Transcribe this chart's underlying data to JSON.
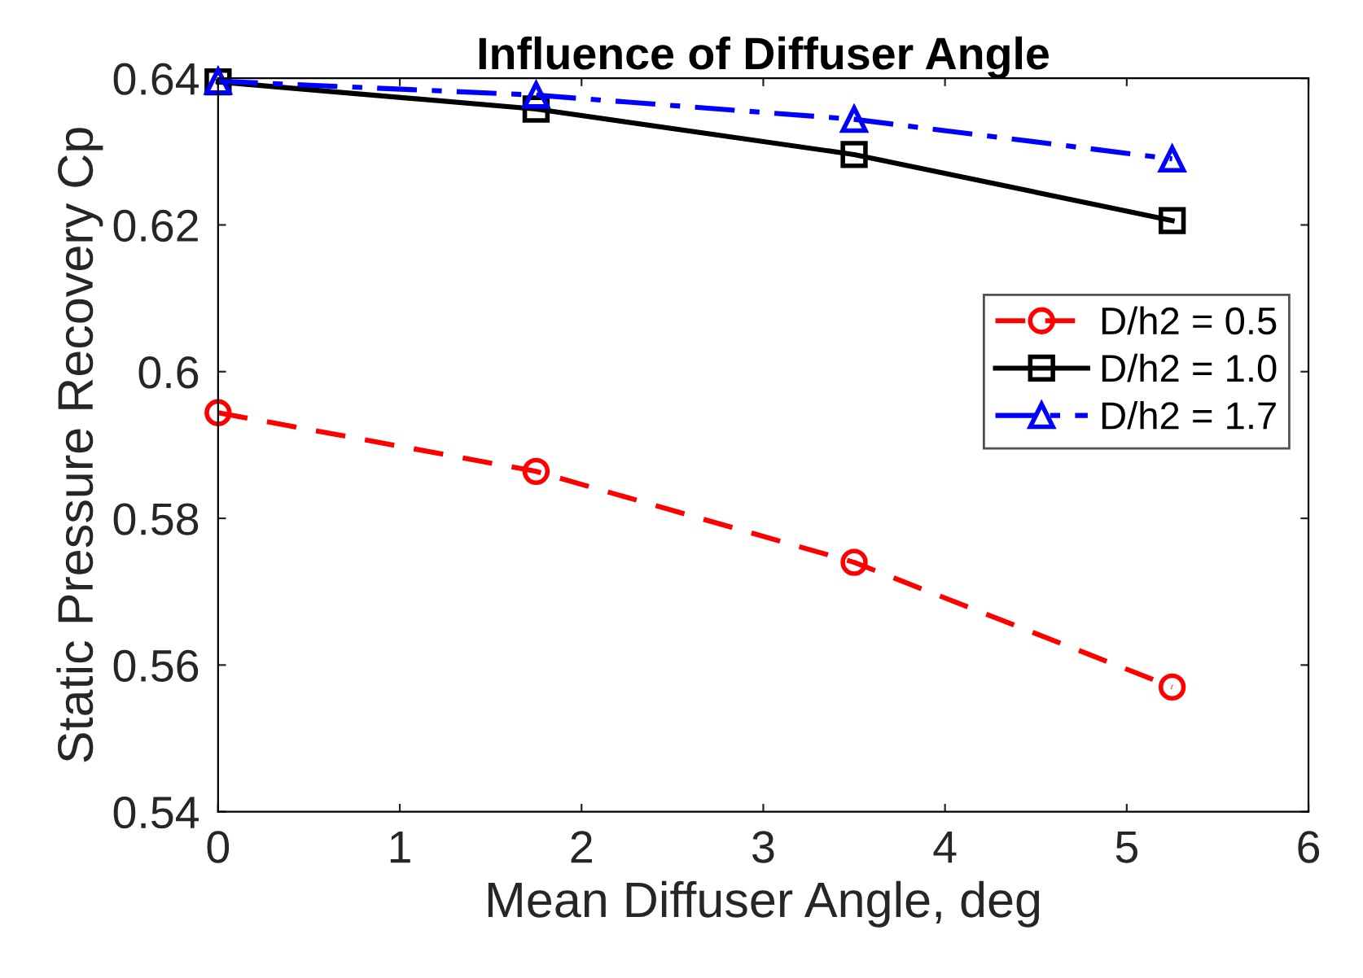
{
  "chart_data": {
    "type": "line",
    "title": "Influence of Diffuser Angle",
    "xlabel": "Mean Diffuser Angle, deg",
    "ylabel": "Static Pressure Recovery Cp",
    "x": [
      0,
      1.75,
      3.5,
      5.25
    ],
    "series": [
      {
        "name": "D/h2 = 0.5",
        "color": "#ff0000",
        "values": [
          0.5944,
          0.5864,
          0.574,
          0.557
        ],
        "marker": "circle",
        "line_style": "dashed"
      },
      {
        "name": "D/h2 = 1.0",
        "color": "#000000",
        "values": [
          0.6395,
          0.6358,
          0.6296,
          0.6206
        ],
        "marker": "square",
        "line_style": "solid"
      },
      {
        "name": "D/h2 = 1.7",
        "color": "#0000ff",
        "values": [
          0.6396,
          0.6377,
          0.6344,
          0.629
        ],
        "marker": "triangle",
        "line_style": "dashdot"
      }
    ],
    "xlim": [
      0,
      6
    ],
    "ylim": [
      0.54,
      0.64
    ],
    "xticks": [
      0,
      1,
      2,
      3,
      4,
      5,
      6
    ],
    "yticks": [
      0.54,
      0.56,
      0.58,
      0.6,
      0.62,
      0.64
    ],
    "grid": false,
    "legend": "right"
  }
}
